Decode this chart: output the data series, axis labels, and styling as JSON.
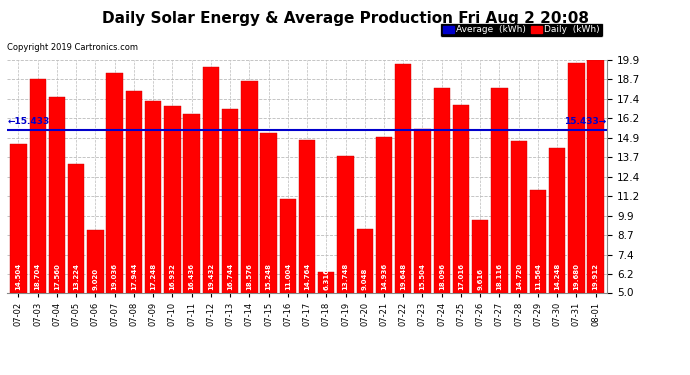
{
  "title": "Daily Solar Energy & Average Production Fri Aug 2 20:08",
  "copyright": "Copyright 2019 Cartronics.com",
  "average": 15.433,
  "categories": [
    "07-02",
    "07-03",
    "07-04",
    "07-05",
    "07-06",
    "07-07",
    "07-08",
    "07-09",
    "07-10",
    "07-11",
    "07-12",
    "07-13",
    "07-14",
    "07-15",
    "07-16",
    "07-17",
    "07-18",
    "07-19",
    "07-20",
    "07-21",
    "07-22",
    "07-23",
    "07-24",
    "07-25",
    "07-26",
    "07-27",
    "07-28",
    "07-29",
    "07-30",
    "07-31",
    "08-01"
  ],
  "values": [
    14.504,
    18.704,
    17.56,
    13.224,
    9.02,
    19.036,
    17.944,
    17.248,
    16.932,
    16.436,
    19.432,
    16.744,
    18.576,
    15.248,
    11.004,
    14.764,
    6.316,
    13.748,
    9.048,
    14.936,
    19.648,
    15.504,
    18.096,
    17.016,
    9.616,
    18.116,
    14.72,
    11.564,
    14.248,
    19.68,
    19.912
  ],
  "bar_color": "#ff0000",
  "bar_edge_color": "#cc0000",
  "avg_line_color": "#0000cc",
  "ymin": 5.0,
  "ymax": 19.9,
  "yticks": [
    5.0,
    6.2,
    7.4,
    8.7,
    9.9,
    11.2,
    12.4,
    13.7,
    14.9,
    16.2,
    17.4,
    18.7,
    19.9
  ],
  "bg_color": "#ffffff",
  "plot_bg_color": "#ffffff",
  "grid_color": "#bbbbbb",
  "title_fontsize": 11,
  "bar_label_fontsize": 5.0,
  "tick_fontsize": 7.5,
  "avg_label": "15.433",
  "legend_avg_color": "#0000cc",
  "legend_daily_color": "#ff0000",
  "legend_bg_color": "#000000",
  "legend_text_color": "#ffffff"
}
